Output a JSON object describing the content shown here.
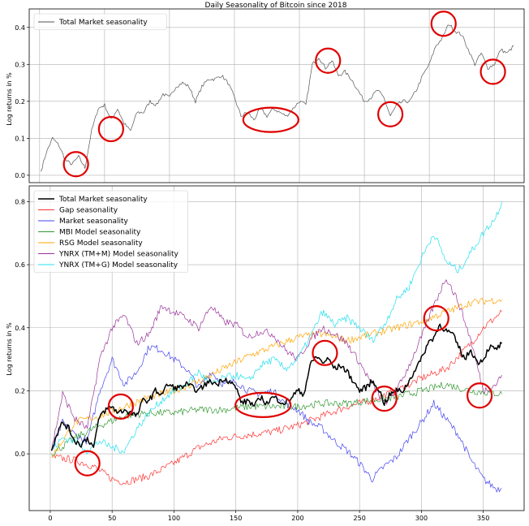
{
  "chart_data": [
    {
      "type": "line",
      "title": "Daily Seasonality of Bitcoin since 2018",
      "xlabel": "",
      "ylabel": "Log returns in %",
      "xlim": [
        -8,
        373
      ],
      "ylim": [
        -0.02,
        0.45
      ],
      "xticks": [],
      "yticks": [
        0.0,
        0.1,
        0.2,
        0.3,
        0.4
      ],
      "ytick_labels": [
        "0.0",
        "0.1",
        "0.2",
        "0.3",
        "0.4"
      ],
      "grid": true,
      "legend": "top-left",
      "series": [
        {
          "name": "Total Market seasonality",
          "color": "#555555",
          "x": [
            1,
            5,
            10,
            15,
            20,
            25,
            30,
            35,
            40,
            45,
            50,
            55,
            60,
            65,
            70,
            75,
            80,
            85,
            90,
            95,
            100,
            105,
            110,
            115,
            120,
            125,
            130,
            135,
            140,
            145,
            150,
            155,
            160,
            165,
            170,
            175,
            180,
            185,
            190,
            195,
            200,
            205,
            210,
            215,
            220,
            225,
            230,
            235,
            240,
            245,
            250,
            255,
            260,
            265,
            270,
            275,
            280,
            285,
            290,
            295,
            300,
            305,
            310,
            315,
            320,
            325,
            330,
            335,
            340,
            345,
            350,
            355,
            360,
            365
          ],
          "y": [
            0.01,
            0.06,
            0.1,
            0.08,
            0.04,
            0.03,
            0.05,
            0.02,
            0.12,
            0.18,
            0.19,
            0.15,
            0.18,
            0.14,
            0.12,
            0.17,
            0.17,
            0.2,
            0.19,
            0.22,
            0.21,
            0.24,
            0.25,
            0.24,
            0.2,
            0.24,
            0.26,
            0.26,
            0.27,
            0.25,
            0.21,
            0.16,
            0.17,
            0.15,
            0.18,
            0.16,
            0.18,
            0.17,
            0.16,
            0.18,
            0.2,
            0.19,
            0.3,
            0.32,
            0.29,
            0.31,
            0.27,
            0.28,
            0.26,
            0.23,
            0.2,
            0.21,
            0.23,
            0.21,
            0.16,
            0.19,
            0.2,
            0.2,
            0.23,
            0.27,
            0.3,
            0.35,
            0.37,
            0.41,
            0.39,
            0.38,
            0.34,
            0.3,
            0.33,
            0.29,
            0.3,
            0.34,
            0.33,
            0.35
          ]
        }
      ],
      "annotations": [
        {
          "type": "circle",
          "x": 28,
          "y": 0.03
        },
        {
          "type": "circle",
          "x": 55,
          "y": 0.125
        },
        {
          "type": "ellipse",
          "x": 178,
          "y": 0.15
        },
        {
          "type": "circle",
          "x": 222,
          "y": 0.31
        },
        {
          "type": "circle",
          "x": 270,
          "y": 0.165
        },
        {
          "type": "circle",
          "x": 311,
          "y": 0.41
        },
        {
          "type": "circle",
          "x": 349,
          "y": 0.28
        }
      ]
    },
    {
      "type": "line",
      "title": "",
      "xlabel": "",
      "ylabel": "Log returns in %",
      "xlim": [
        -17,
        383
      ],
      "ylim": [
        -0.18,
        0.85
      ],
      "xticks": [
        0,
        50,
        100,
        150,
        200,
        250,
        300,
        350
      ],
      "xtick_labels": [
        "0",
        "50",
        "100",
        "150",
        "200",
        "250",
        "300",
        "350"
      ],
      "yticks": [
        0.0,
        0.2,
        0.4,
        0.6,
        0.8
      ],
      "ytick_labels": [
        "0.0",
        "0.2",
        "0.4",
        "0.6",
        "0.8"
      ],
      "grid": true,
      "legend": "top-left",
      "series": [
        {
          "name": "Total Market seasonality",
          "color": "#000000",
          "x": [
            1,
            5,
            10,
            15,
            20,
            25,
            30,
            35,
            40,
            45,
            50,
            55,
            60,
            65,
            70,
            75,
            80,
            85,
            90,
            95,
            100,
            105,
            110,
            115,
            120,
            125,
            130,
            135,
            140,
            145,
            150,
            155,
            160,
            165,
            170,
            175,
            180,
            185,
            190,
            195,
            200,
            205,
            210,
            215,
            220,
            225,
            230,
            235,
            240,
            245,
            250,
            255,
            260,
            265,
            270,
            275,
            280,
            285,
            290,
            295,
            300,
            305,
            310,
            315,
            320,
            325,
            330,
            335,
            340,
            345,
            350,
            355,
            360,
            365
          ],
          "y": [
            0.01,
            0.06,
            0.1,
            0.08,
            0.04,
            0.03,
            0.05,
            0.02,
            0.12,
            0.14,
            0.15,
            0.13,
            0.14,
            0.13,
            0.12,
            0.17,
            0.17,
            0.2,
            0.19,
            0.22,
            0.21,
            0.21,
            0.22,
            0.21,
            0.2,
            0.22,
            0.23,
            0.22,
            0.24,
            0.23,
            0.21,
            0.16,
            0.17,
            0.15,
            0.18,
            0.16,
            0.18,
            0.17,
            0.16,
            0.18,
            0.2,
            0.19,
            0.28,
            0.31,
            0.29,
            0.3,
            0.27,
            0.28,
            0.26,
            0.23,
            0.2,
            0.21,
            0.23,
            0.21,
            0.16,
            0.19,
            0.2,
            0.2,
            0.23,
            0.27,
            0.3,
            0.35,
            0.37,
            0.41,
            0.39,
            0.38,
            0.34,
            0.3,
            0.33,
            0.29,
            0.3,
            0.34,
            0.33,
            0.35
          ]
        },
        {
          "name": "Gap seasonality",
          "color": "#ff3333",
          "x": [
            1,
            20,
            35,
            50,
            60,
            80,
            100,
            120,
            140,
            160,
            180,
            200,
            220,
            240,
            260,
            280,
            300,
            320,
            340,
            350,
            365
          ],
          "y": [
            -0.01,
            -0.02,
            -0.04,
            -0.08,
            -0.09,
            -0.07,
            -0.03,
            0.02,
            0.05,
            0.06,
            0.07,
            0.09,
            0.12,
            0.15,
            0.17,
            0.2,
            0.24,
            0.27,
            0.35,
            0.4,
            0.45
          ]
        },
        {
          "name": "Market seasonality",
          "color": "#4444ee",
          "x": [
            1,
            10,
            20,
            30,
            40,
            50,
            60,
            70,
            80,
            90,
            100,
            110,
            120,
            130,
            140,
            150,
            160,
            170,
            180,
            190,
            200,
            210,
            220,
            230,
            240,
            250,
            260,
            270,
            280,
            290,
            300,
            310,
            320,
            330,
            340,
            350,
            360,
            365
          ],
          "y": [
            0.01,
            0.1,
            0.06,
            0.04,
            0.2,
            0.3,
            0.22,
            0.26,
            0.34,
            0.33,
            0.3,
            0.27,
            0.21,
            0.26,
            0.22,
            0.23,
            0.2,
            0.19,
            0.2,
            0.16,
            0.14,
            0.1,
            0.08,
            0.04,
            0.01,
            -0.03,
            -0.08,
            -0.04,
            -0.01,
            0.05,
            0.1,
            0.16,
            0.11,
            0.06,
            -0.02,
            -0.08,
            -0.11,
            -0.11
          ]
        },
        {
          "name": "MBI Model seasonality",
          "color": "#339933",
          "x": [
            1,
            20,
            40,
            60,
            80,
            100,
            120,
            140,
            160,
            180,
            200,
            220,
            240,
            260,
            280,
            300,
            320,
            340,
            365
          ],
          "y": [
            0.0,
            0.05,
            0.09,
            0.12,
            0.13,
            0.13,
            0.14,
            0.14,
            0.15,
            0.15,
            0.15,
            0.16,
            0.16,
            0.17,
            0.18,
            0.2,
            0.22,
            0.2,
            0.19
          ]
        },
        {
          "name": "RSG Model seasonality",
          "color": "#ffa500",
          "x": [
            1,
            20,
            40,
            60,
            80,
            100,
            120,
            140,
            160,
            180,
            200,
            220,
            240,
            260,
            280,
            300,
            320,
            340,
            365
          ],
          "y": [
            -0.01,
            0.1,
            0.12,
            0.15,
            0.18,
            0.2,
            0.23,
            0.27,
            0.31,
            0.34,
            0.37,
            0.38,
            0.36,
            0.38,
            0.4,
            0.42,
            0.45,
            0.48,
            0.49
          ]
        },
        {
          "name": "YNRX (TM+M) Model seasonality",
          "color": "#993399",
          "x": [
            1,
            10,
            20,
            30,
            40,
            50,
            60,
            70,
            80,
            90,
            100,
            110,
            120,
            130,
            140,
            150,
            160,
            170,
            180,
            190,
            200,
            210,
            220,
            230,
            240,
            250,
            260,
            270,
            280,
            290,
            300,
            310,
            320,
            330,
            340,
            350,
            360,
            365
          ],
          "y": [
            0.01,
            0.19,
            0.11,
            0.08,
            0.3,
            0.4,
            0.44,
            0.35,
            0.38,
            0.47,
            0.45,
            0.43,
            0.4,
            0.47,
            0.42,
            0.41,
            0.37,
            0.39,
            0.38,
            0.33,
            0.3,
            0.36,
            0.4,
            0.38,
            0.35,
            0.29,
            0.22,
            0.16,
            0.2,
            0.28,
            0.37,
            0.47,
            0.56,
            0.48,
            0.36,
            0.2,
            0.22,
            0.25
          ]
        },
        {
          "name": "YNRX (TM+G) Model seasonality",
          "color": "#22e0f0",
          "x": [
            1,
            10,
            20,
            30,
            40,
            50,
            60,
            70,
            80,
            90,
            100,
            110,
            120,
            130,
            140,
            150,
            160,
            170,
            180,
            190,
            200,
            210,
            220,
            230,
            240,
            250,
            260,
            270,
            280,
            290,
            300,
            310,
            320,
            330,
            340,
            350,
            360,
            365
          ],
          "y": [
            0.01,
            0.05,
            0.04,
            0.01,
            0.04,
            0.02,
            0.01,
            0.08,
            0.13,
            0.17,
            0.2,
            0.22,
            0.26,
            0.22,
            0.24,
            0.25,
            0.23,
            0.28,
            0.3,
            0.27,
            0.3,
            0.37,
            0.45,
            0.41,
            0.43,
            0.4,
            0.36,
            0.41,
            0.49,
            0.53,
            0.62,
            0.7,
            0.61,
            0.58,
            0.64,
            0.7,
            0.75,
            0.8
          ]
        }
      ],
      "annotations": [
        {
          "type": "circle",
          "x": 30,
          "y": -0.03
        },
        {
          "type": "circle",
          "x": 57,
          "y": 0.15
        },
        {
          "type": "ellipse",
          "x": 172,
          "y": 0.155
        },
        {
          "type": "circle",
          "x": 222,
          "y": 0.32
        },
        {
          "type": "circle",
          "x": 270,
          "y": 0.175
        },
        {
          "type": "circle",
          "x": 312,
          "y": 0.43
        },
        {
          "type": "circle",
          "x": 347,
          "y": 0.185
        }
      ]
    }
  ]
}
